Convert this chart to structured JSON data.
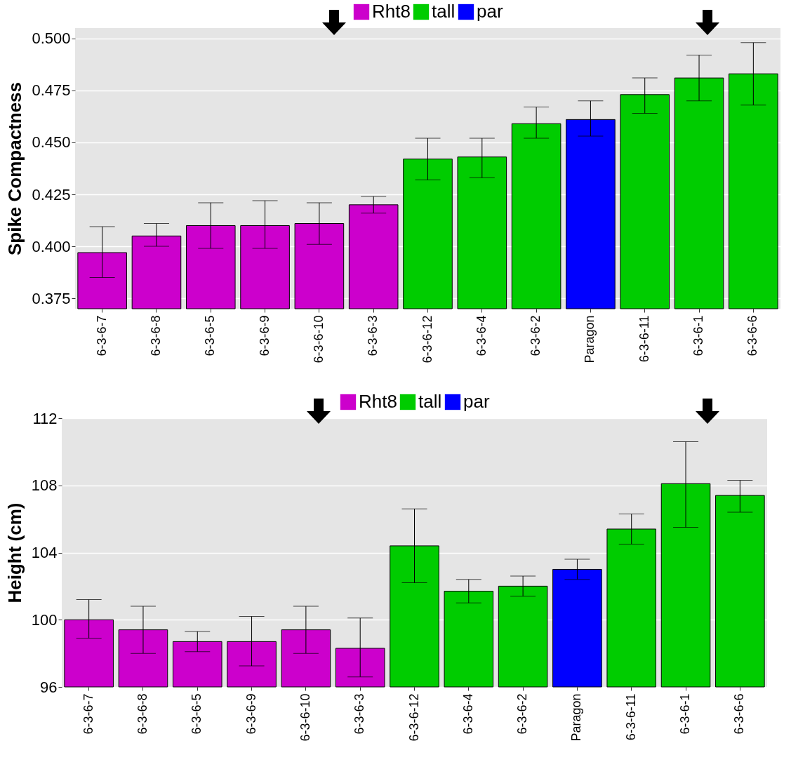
{
  "chart_data": [
    {
      "type": "bar",
      "ylabel": "Spike Compactness",
      "categories": [
        "6-3-6-7",
        "6-3-6-8",
        "6-3-6-5",
        "6-3-6-9",
        "6-3-6-10",
        "6-3-6-3",
        "6-3-6-12",
        "6-3-6-4",
        "6-3-6-2",
        "Paragon",
        "6-3-6-11",
        "6-3-6-1",
        "6-3-6-6"
      ],
      "series": [
        {
          "name": "Rht8",
          "color": "#cc00cc",
          "values": [
            0.397,
            0.405,
            0.41,
            0.41,
            0.411,
            0.42,
            null,
            null,
            null,
            null,
            null,
            null,
            null
          ],
          "errors": [
            [
              0.385,
              0.4095
            ],
            [
              0.4,
              0.411
            ],
            [
              0.399,
              0.421
            ],
            [
              0.399,
              0.422
            ],
            [
              0.401,
              0.421
            ],
            [
              0.416,
              0.424
            ],
            null,
            null,
            null,
            null,
            null,
            null,
            null
          ]
        },
        {
          "name": "tall",
          "color": "#00cc00",
          "values": [
            null,
            null,
            null,
            null,
            null,
            null,
            0.442,
            0.443,
            0.459,
            null,
            0.473,
            0.481,
            0.483
          ],
          "errors": [
            null,
            null,
            null,
            null,
            null,
            null,
            [
              0.432,
              0.452
            ],
            [
              0.433,
              0.452
            ],
            [
              0.452,
              0.467
            ],
            null,
            [
              0.464,
              0.481
            ],
            [
              0.47,
              0.492
            ],
            [
              0.468,
              0.498
            ]
          ]
        },
        {
          "name": "par",
          "color": "#0000ff",
          "values": [
            null,
            null,
            null,
            null,
            null,
            null,
            null,
            null,
            null,
            0.461,
            null,
            null,
            null
          ],
          "errors": [
            null,
            null,
            null,
            null,
            null,
            null,
            null,
            null,
            null,
            [
              0.453,
              0.47
            ],
            null,
            null,
            null
          ]
        }
      ],
      "ylim": [
        0.37,
        0.505
      ],
      "yticks": [
        {
          "value": 0.375,
          "label": "0.375"
        },
        {
          "value": 0.4,
          "label": "0.400"
        },
        {
          "value": 0.425,
          "label": "0.425"
        },
        {
          "value": 0.45,
          "label": "0.450"
        },
        {
          "value": 0.475,
          "label": "0.475"
        },
        {
          "value": 0.5,
          "label": "0.500"
        }
      ],
      "grid": "y",
      "legend": "top"
    },
    {
      "type": "bar",
      "ylabel": "Height (cm)",
      "categories": [
        "6-3-6-7",
        "6-3-6-8",
        "6-3-6-5",
        "6-3-6-9",
        "6-3-6-10",
        "6-3-6-3",
        "6-3-6-12",
        "6-3-6-4",
        "6-3-6-2",
        "Paragon",
        "6-3-6-11",
        "6-3-6-1",
        "6-3-6-6"
      ],
      "series": [
        {
          "name": "Rht8",
          "color": "#cc00cc",
          "values": [
            100.0,
            99.4,
            98.7,
            98.7,
            99.4,
            98.3,
            null,
            null,
            null,
            null,
            null,
            null,
            null
          ],
          "errors": [
            [
              98.9,
              101.2
            ],
            [
              98.0,
              100.8
            ],
            [
              98.1,
              99.3
            ],
            [
              97.25,
              100.2
            ],
            [
              98.0,
              100.8
            ],
            [
              96.6,
              100.1
            ],
            null,
            null,
            null,
            null,
            null,
            null,
            null
          ]
        },
        {
          "name": "tall",
          "color": "#00cc00",
          "values": [
            null,
            null,
            null,
            null,
            null,
            null,
            104.4,
            101.7,
            102.0,
            null,
            105.4,
            108.1,
            107.4
          ],
          "errors": [
            null,
            null,
            null,
            null,
            null,
            null,
            [
              102.2,
              106.6
            ],
            [
              101.0,
              102.4
            ],
            [
              101.4,
              102.6
            ],
            null,
            [
              104.5,
              106.3
            ],
            [
              105.5,
              110.6
            ],
            [
              106.4,
              108.3
            ]
          ]
        },
        {
          "name": "par",
          "color": "#0000ff",
          "values": [
            null,
            null,
            null,
            null,
            null,
            null,
            null,
            null,
            null,
            103.0,
            null,
            null,
            null
          ],
          "errors": [
            null,
            null,
            null,
            null,
            null,
            null,
            null,
            null,
            null,
            [
              102.4,
              103.6
            ],
            null,
            null,
            null
          ]
        }
      ],
      "ylim": [
        96,
        112
      ],
      "yticks": [
        96,
        100,
        104,
        108,
        112
      ],
      "grid": "y",
      "legend": "top"
    }
  ]
}
